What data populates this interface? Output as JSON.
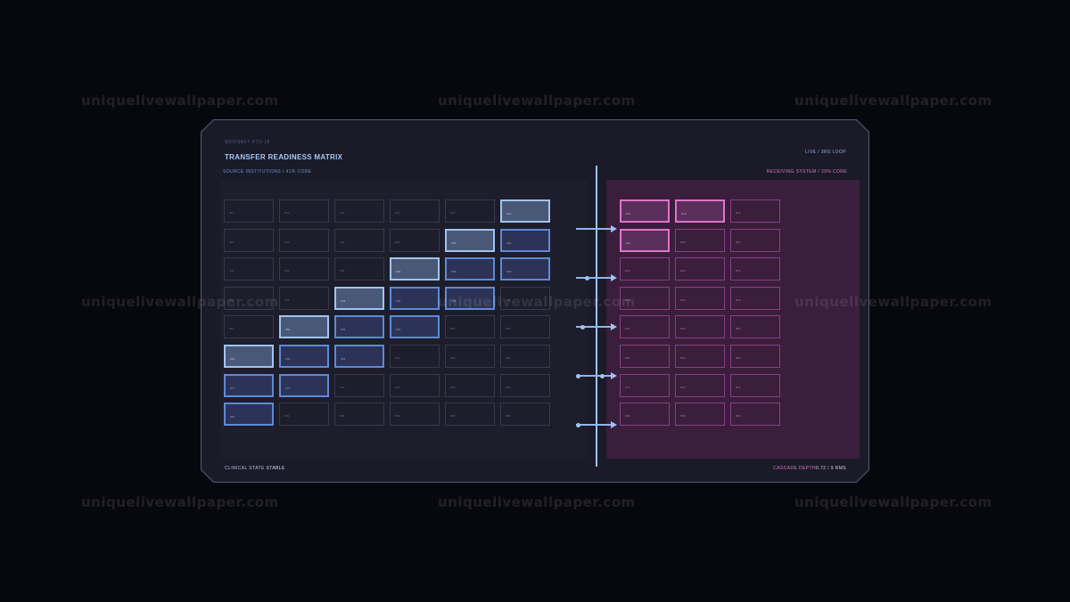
{
  "header": {
    "code": "SOV/SRFT PTX-18",
    "title": "TRANSFER READINESS MATRIX",
    "status": "LIVE / 3RS LOOP"
  },
  "left_section": {
    "label": "SOURCE INSTITUTIONS / 41% CORE",
    "rows": [
      {
        "cells": [
          {
            "text": "S11",
            "state": "off"
          },
          {
            "text": "S12",
            "state": "off"
          },
          {
            "text": "S13",
            "state": "off"
          },
          {
            "text": "S14",
            "state": "off"
          },
          {
            "text": "S15",
            "state": "off"
          },
          {
            "text": "S16",
            "state": "hi"
          }
        ]
      },
      {
        "cells": [
          {
            "text": "S21",
            "state": "off"
          },
          {
            "text": "S22",
            "state": "off"
          },
          {
            "text": "S23",
            "state": "off"
          },
          {
            "text": "S24",
            "state": "off"
          },
          {
            "text": "S25",
            "state": "hi"
          },
          {
            "text": "S26",
            "state": "mid"
          }
        ]
      },
      {
        "cells": [
          {
            "text": "S31",
            "state": "off"
          },
          {
            "text": "S32",
            "state": "off"
          },
          {
            "text": "S33",
            "state": "off"
          },
          {
            "text": "S34",
            "state": "hi"
          },
          {
            "text": "S35",
            "state": "mid"
          },
          {
            "text": "S36",
            "state": "mid"
          }
        ]
      },
      {
        "cells": [
          {
            "text": "S41",
            "state": "off"
          },
          {
            "text": "S42",
            "state": "off"
          },
          {
            "text": "S43",
            "state": "hi"
          },
          {
            "text": "S44",
            "state": "mid"
          },
          {
            "text": "S45",
            "state": "mid"
          },
          {
            "text": "S46",
            "state": "off"
          }
        ]
      },
      {
        "cells": [
          {
            "text": "S51",
            "state": "off"
          },
          {
            "text": "S52",
            "state": "hi"
          },
          {
            "text": "S53",
            "state": "mid"
          },
          {
            "text": "S54",
            "state": "mid"
          },
          {
            "text": "S55",
            "state": "off"
          },
          {
            "text": "S56",
            "state": "off"
          }
        ]
      },
      {
        "cells": [
          {
            "text": "S61",
            "state": "hi"
          },
          {
            "text": "S62",
            "state": "mid"
          },
          {
            "text": "S63",
            "state": "mid"
          },
          {
            "text": "S64",
            "state": "off"
          },
          {
            "text": "S65",
            "state": "off"
          },
          {
            "text": "S66",
            "state": "off"
          }
        ]
      },
      {
        "cells": [
          {
            "text": "S71",
            "state": "mid"
          },
          {
            "text": "S72",
            "state": "mid"
          },
          {
            "text": "S73",
            "state": "off"
          },
          {
            "text": "S74",
            "state": "off"
          },
          {
            "text": "S75",
            "state": "off"
          },
          {
            "text": "S76",
            "state": "off"
          }
        ]
      },
      {
        "cells": [
          {
            "text": "S81",
            "state": "mid"
          },
          {
            "text": "S82",
            "state": "off"
          },
          {
            "text": "S83",
            "state": "off"
          },
          {
            "text": "S84",
            "state": "off"
          },
          {
            "text": "S85",
            "state": "off"
          },
          {
            "text": "S86",
            "state": "off"
          }
        ]
      }
    ]
  },
  "right_section": {
    "label": "RECEIVING SYSTEM / 29% CORE",
    "rows": [
      {
        "cells": [
          {
            "text": "R11",
            "state": "hi"
          },
          {
            "text": "R12",
            "state": "hi"
          },
          {
            "text": "R13",
            "state": "off"
          }
        ]
      },
      {
        "cells": [
          {
            "text": "R21",
            "state": "hi"
          },
          {
            "text": "R22",
            "state": "off"
          },
          {
            "text": "R23",
            "state": "off"
          }
        ]
      },
      {
        "cells": [
          {
            "text": "R31",
            "state": "off"
          },
          {
            "text": "R32",
            "state": "off"
          },
          {
            "text": "R33",
            "state": "off"
          }
        ]
      },
      {
        "cells": [
          {
            "text": "R41",
            "state": "off"
          },
          {
            "text": "R42",
            "state": "off"
          },
          {
            "text": "R43",
            "state": "off"
          }
        ]
      },
      {
        "cells": [
          {
            "text": "R51",
            "state": "off"
          },
          {
            "text": "R52",
            "state": "off"
          },
          {
            "text": "R53",
            "state": "off"
          }
        ]
      },
      {
        "cells": [
          {
            "text": "R61",
            "state": "off"
          },
          {
            "text": "R62",
            "state": "off"
          },
          {
            "text": "R63",
            "state": "off"
          }
        ]
      },
      {
        "cells": [
          {
            "text": "R71",
            "state": "off"
          },
          {
            "text": "R72",
            "state": "off"
          },
          {
            "text": "R73",
            "state": "off"
          }
        ]
      },
      {
        "cells": [
          {
            "text": "R81",
            "state": "off"
          },
          {
            "text": "R82",
            "state": "off"
          },
          {
            "text": "R83",
            "state": "off"
          }
        ]
      }
    ]
  },
  "flow_arrows": [
    {
      "name": "flow-arrow-1",
      "dots": 0
    },
    {
      "name": "flow-arrow-2",
      "dots": 1
    },
    {
      "name": "flow-arrow-3",
      "dots": 1
    },
    {
      "name": "flow-arrow-4",
      "dots": 2
    },
    {
      "name": "flow-arrow-5",
      "dots": 1
    }
  ],
  "footer": {
    "state_label": "CLINICAL STATE",
    "state_value": "STABLE",
    "cascade_label": "CASCADE DEPTH",
    "cascade_value": "0.72 / 9 RMS"
  },
  "watermark": {
    "text": "uniquelivewallpaper.com"
  },
  "colors": {
    "background": "#07070e",
    "panel": "#1b1a28",
    "blue_accent": "#9ec3f3",
    "pink_accent": "#df74cc"
  }
}
